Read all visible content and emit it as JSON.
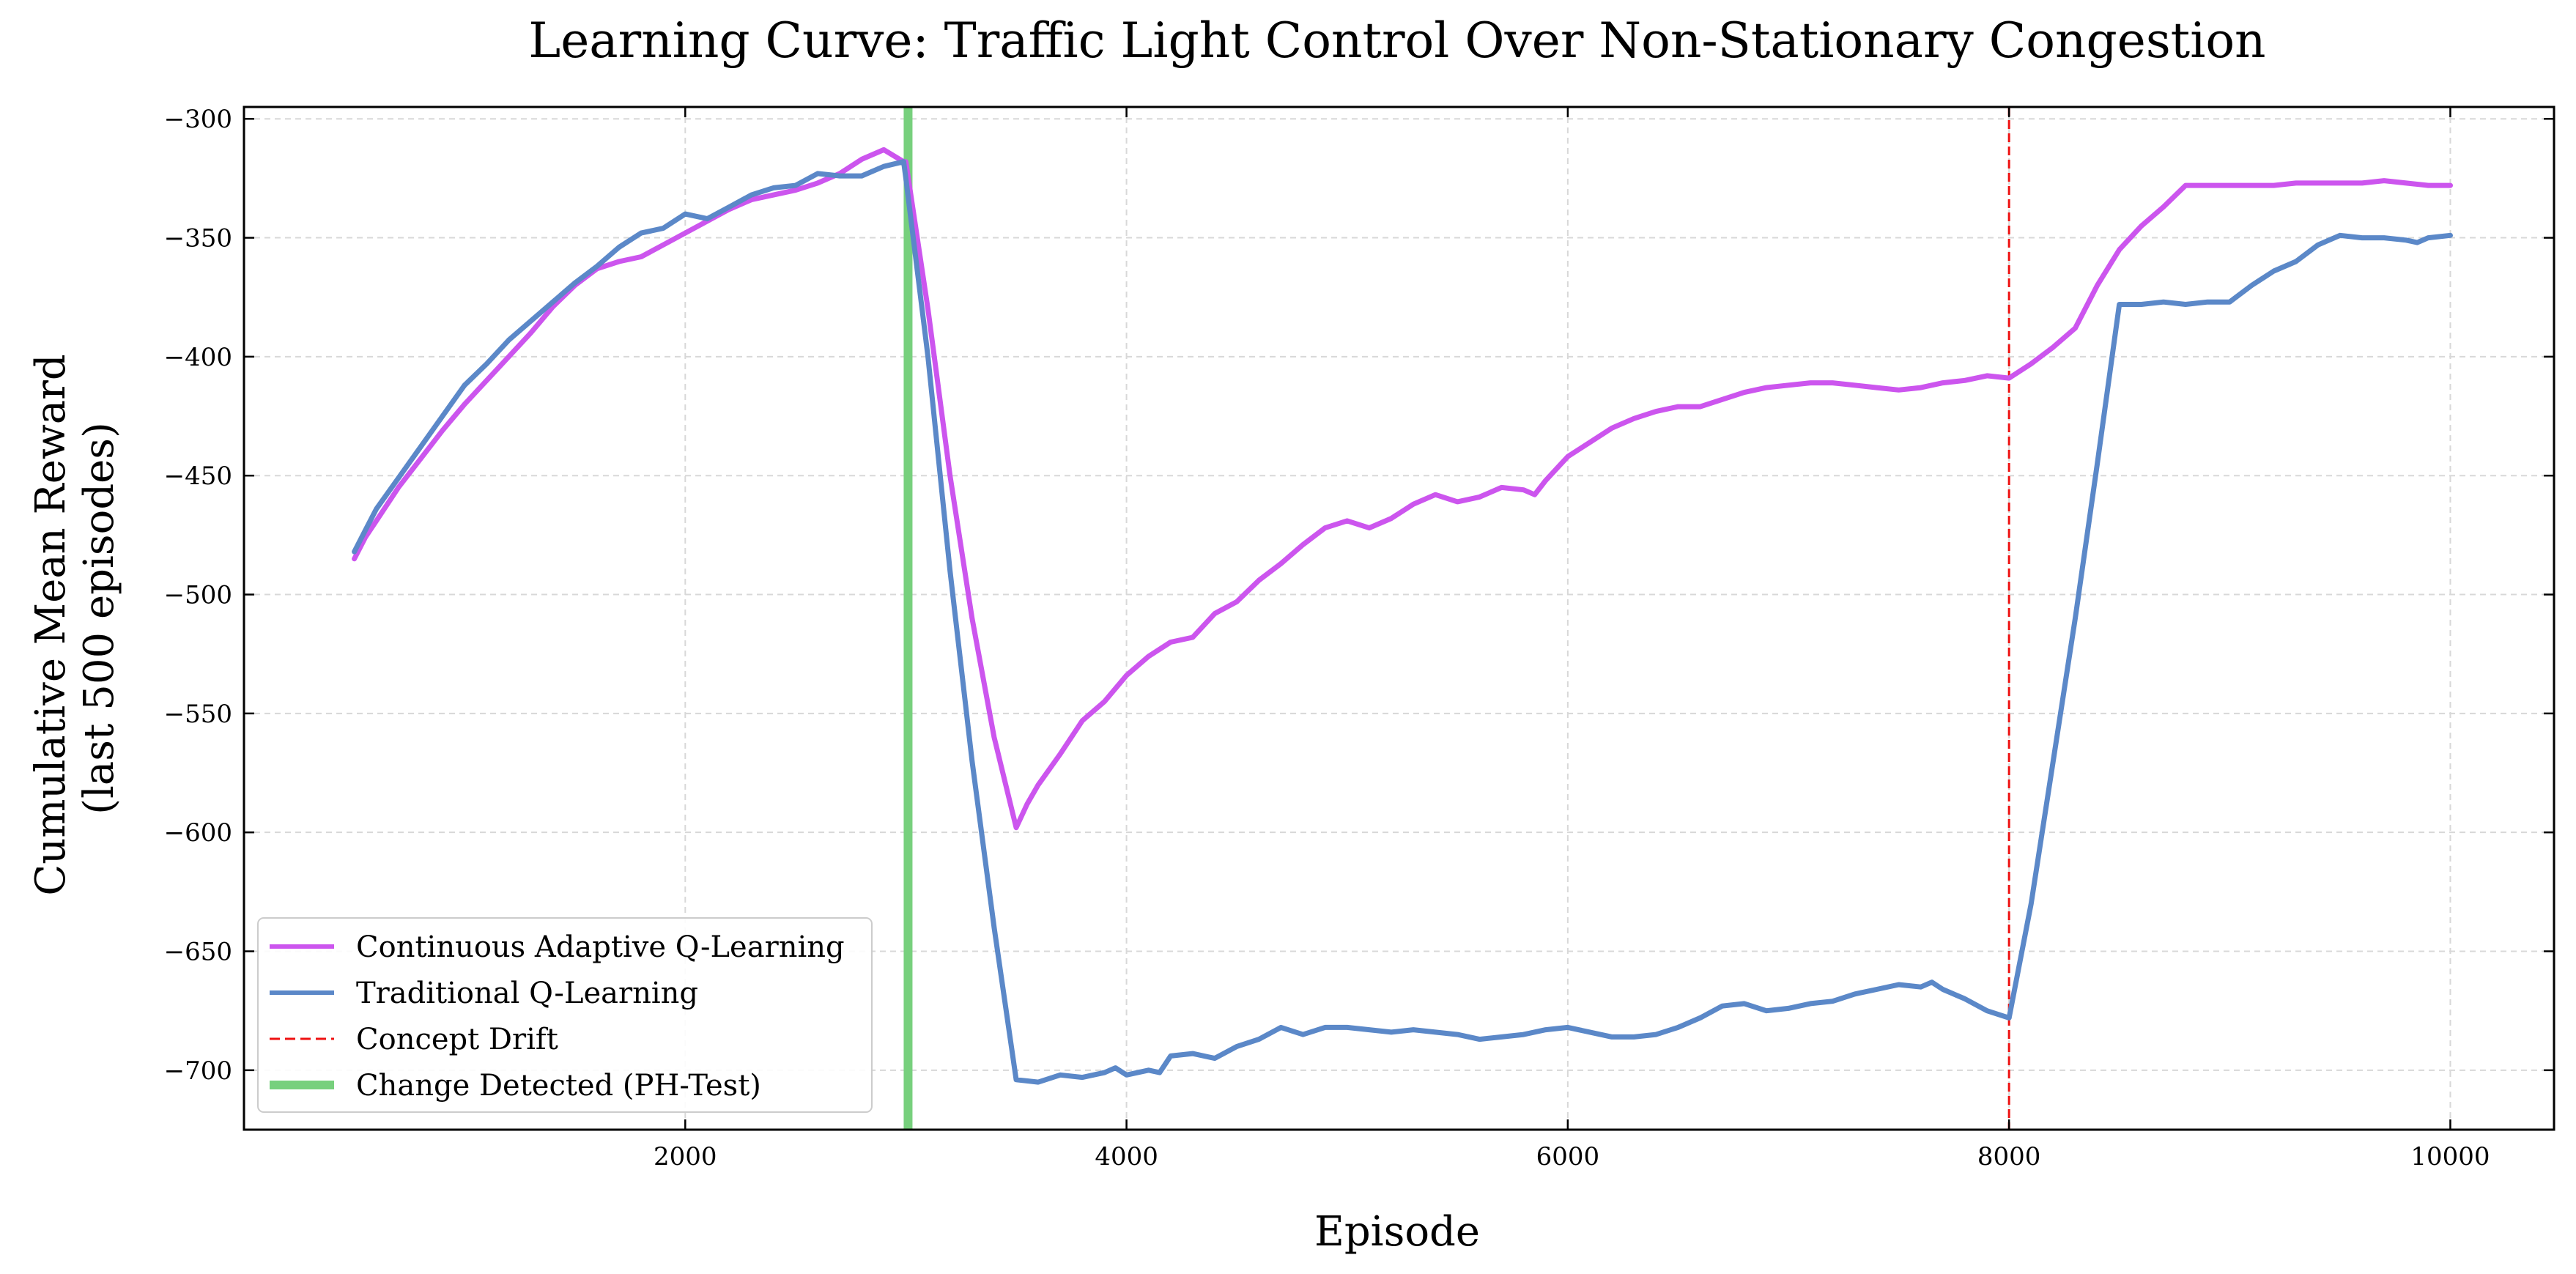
{
  "chart_data": {
    "type": "line",
    "title": "Learning Curve: Traffic Light Control Over Non-Stationary Congestion",
    "xlabel": "Episode",
    "ylabel_lines": [
      "Cumulative Mean Reward",
      "(last 500 episodes)"
    ],
    "xlim": [
      0,
      10470
    ],
    "ylim": [
      -725,
      -295
    ],
    "x_ticks": [
      2000,
      4000,
      6000,
      8000,
      10000
    ],
    "y_ticks": [
      -300,
      -350,
      -400,
      -450,
      -500,
      -550,
      -600,
      -650,
      -700
    ],
    "tick_labels": {
      "x": [
        "2000",
        "4000",
        "6000",
        "8000",
        "10000"
      ],
      "y": [
        "−300",
        "−350",
        "−400",
        "−450",
        "−500",
        "−550",
        "−600",
        "−650",
        "−700"
      ]
    },
    "grid": true,
    "legend_position": "lower-left",
    "series": [
      {
        "name": "Continuous Adaptive Q-Learning",
        "color": "#cc55ee",
        "points": [
          [
            500,
            -485
          ],
          [
            550,
            -476
          ],
          [
            600,
            -469
          ],
          [
            700,
            -455
          ],
          [
            800,
            -443
          ],
          [
            900,
            -431
          ],
          [
            1000,
            -420
          ],
          [
            1100,
            -410
          ],
          [
            1200,
            -400
          ],
          [
            1300,
            -390
          ],
          [
            1400,
            -379
          ],
          [
            1500,
            -370
          ],
          [
            1600,
            -363
          ],
          [
            1700,
            -360
          ],
          [
            1800,
            -358
          ],
          [
            1900,
            -353
          ],
          [
            2000,
            -348
          ],
          [
            2100,
            -343
          ],
          [
            2200,
            -338
          ],
          [
            2300,
            -334
          ],
          [
            2400,
            -332
          ],
          [
            2500,
            -330
          ],
          [
            2600,
            -327
          ],
          [
            2700,
            -323
          ],
          [
            2800,
            -317
          ],
          [
            2900,
            -313
          ],
          [
            2990,
            -318
          ],
          [
            3000,
            -318
          ],
          [
            3100,
            -380
          ],
          [
            3200,
            -450
          ],
          [
            3300,
            -510
          ],
          [
            3400,
            -560
          ],
          [
            3500,
            -598
          ],
          [
            3550,
            -588
          ],
          [
            3600,
            -580
          ],
          [
            3700,
            -567
          ],
          [
            3800,
            -553
          ],
          [
            3900,
            -545
          ],
          [
            4000,
            -534
          ],
          [
            4100,
            -526
          ],
          [
            4200,
            -520
          ],
          [
            4300,
            -518
          ],
          [
            4400,
            -508
          ],
          [
            4500,
            -503
          ],
          [
            4600,
            -494
          ],
          [
            4700,
            -487
          ],
          [
            4800,
            -479
          ],
          [
            4900,
            -472
          ],
          [
            5000,
            -469
          ],
          [
            5100,
            -472
          ],
          [
            5200,
            -468
          ],
          [
            5300,
            -462
          ],
          [
            5400,
            -458
          ],
          [
            5500,
            -461
          ],
          [
            5600,
            -459
          ],
          [
            5700,
            -455
          ],
          [
            5800,
            -456
          ],
          [
            5850,
            -458
          ],
          [
            5900,
            -452
          ],
          [
            6000,
            -442
          ],
          [
            6100,
            -436
          ],
          [
            6200,
            -430
          ],
          [
            6300,
            -426
          ],
          [
            6400,
            -423
          ],
          [
            6500,
            -421
          ],
          [
            6600,
            -421
          ],
          [
            6700,
            -418
          ],
          [
            6800,
            -415
          ],
          [
            6900,
            -413
          ],
          [
            7000,
            -412
          ],
          [
            7100,
            -411
          ],
          [
            7200,
            -411
          ],
          [
            7300,
            -412
          ],
          [
            7400,
            -413
          ],
          [
            7500,
            -414
          ],
          [
            7600,
            -413
          ],
          [
            7700,
            -411
          ],
          [
            7800,
            -410
          ],
          [
            7900,
            -408
          ],
          [
            8000,
            -409
          ],
          [
            8100,
            -403
          ],
          [
            8200,
            -396
          ],
          [
            8300,
            -388
          ],
          [
            8400,
            -370
          ],
          [
            8500,
            -355
          ],
          [
            8600,
            -345
          ],
          [
            8700,
            -337
          ],
          [
            8800,
            -328
          ],
          [
            8900,
            -328
          ],
          [
            9000,
            -328
          ],
          [
            9100,
            -328
          ],
          [
            9200,
            -328
          ],
          [
            9300,
            -327
          ],
          [
            9400,
            -327
          ],
          [
            9500,
            -327
          ],
          [
            9600,
            -327
          ],
          [
            9700,
            -326
          ],
          [
            9800,
            -327
          ],
          [
            9900,
            -328
          ],
          [
            10000,
            -328
          ]
        ]
      },
      {
        "name": "Traditional Q-Learning",
        "color": "#5b88c8",
        "points": [
          [
            500,
            -482
          ],
          [
            550,
            -473
          ],
          [
            600,
            -464
          ],
          [
            700,
            -451
          ],
          [
            800,
            -438
          ],
          [
            900,
            -425
          ],
          [
            1000,
            -412
          ],
          [
            1100,
            -403
          ],
          [
            1200,
            -393
          ],
          [
            1300,
            -385
          ],
          [
            1400,
            -377
          ],
          [
            1500,
            -369
          ],
          [
            1600,
            -362
          ],
          [
            1700,
            -354
          ],
          [
            1800,
            -348
          ],
          [
            1900,
            -346
          ],
          [
            2000,
            -340
          ],
          [
            2100,
            -342
          ],
          [
            2200,
            -337
          ],
          [
            2300,
            -332
          ],
          [
            2400,
            -329
          ],
          [
            2500,
            -328
          ],
          [
            2600,
            -323
          ],
          [
            2700,
            -324
          ],
          [
            2800,
            -324
          ],
          [
            2900,
            -320
          ],
          [
            2990,
            -318
          ],
          [
            3000,
            -325
          ],
          [
            3100,
            -400
          ],
          [
            3200,
            -490
          ],
          [
            3300,
            -570
          ],
          [
            3400,
            -640
          ],
          [
            3500,
            -704
          ],
          [
            3600,
            -705
          ],
          [
            3700,
            -702
          ],
          [
            3800,
            -703
          ],
          [
            3900,
            -701
          ],
          [
            3950,
            -699
          ],
          [
            4000,
            -702
          ],
          [
            4100,
            -700
          ],
          [
            4150,
            -701
          ],
          [
            4200,
            -694
          ],
          [
            4300,
            -693
          ],
          [
            4400,
            -695
          ],
          [
            4500,
            -690
          ],
          [
            4600,
            -687
          ],
          [
            4700,
            -682
          ],
          [
            4800,
            -685
          ],
          [
            4900,
            -682
          ],
          [
            5000,
            -682
          ],
          [
            5100,
            -683
          ],
          [
            5200,
            -684
          ],
          [
            5300,
            -683
          ],
          [
            5400,
            -684
          ],
          [
            5500,
            -685
          ],
          [
            5600,
            -687
          ],
          [
            5700,
            -686
          ],
          [
            5800,
            -685
          ],
          [
            5900,
            -683
          ],
          [
            6000,
            -682
          ],
          [
            6100,
            -684
          ],
          [
            6200,
            -686
          ],
          [
            6300,
            -686
          ],
          [
            6400,
            -685
          ],
          [
            6500,
            -682
          ],
          [
            6600,
            -678
          ],
          [
            6700,
            -673
          ],
          [
            6800,
            -672
          ],
          [
            6900,
            -675
          ],
          [
            7000,
            -674
          ],
          [
            7100,
            -672
          ],
          [
            7200,
            -671
          ],
          [
            7300,
            -668
          ],
          [
            7400,
            -666
          ],
          [
            7500,
            -664
          ],
          [
            7600,
            -665
          ],
          [
            7650,
            -663
          ],
          [
            7700,
            -666
          ],
          [
            7800,
            -670
          ],
          [
            7900,
            -675
          ],
          [
            8000,
            -678
          ],
          [
            8100,
            -630
          ],
          [
            8200,
            -570
          ],
          [
            8300,
            -510
          ],
          [
            8400,
            -445
          ],
          [
            8500,
            -378
          ],
          [
            8600,
            -378
          ],
          [
            8700,
            -377
          ],
          [
            8800,
            -378
          ],
          [
            8900,
            -377
          ],
          [
            9000,
            -377
          ],
          [
            9100,
            -370
          ],
          [
            9200,
            -364
          ],
          [
            9300,
            -360
          ],
          [
            9400,
            -353
          ],
          [
            9500,
            -349
          ],
          [
            9600,
            -350
          ],
          [
            9700,
            -350
          ],
          [
            9800,
            -351
          ],
          [
            9850,
            -352
          ],
          [
            9900,
            -350
          ],
          [
            10000,
            -349
          ]
        ]
      }
    ],
    "vertical_lines": [
      {
        "name": "Concept Drift",
        "color": "#ee1111",
        "style": "dashed",
        "x": [
          3000,
          8000
        ]
      },
      {
        "name": "Change Detected (PH-Test)",
        "color": "#77d07d",
        "style": "solid",
        "x": [
          3010
        ]
      }
    ]
  }
}
